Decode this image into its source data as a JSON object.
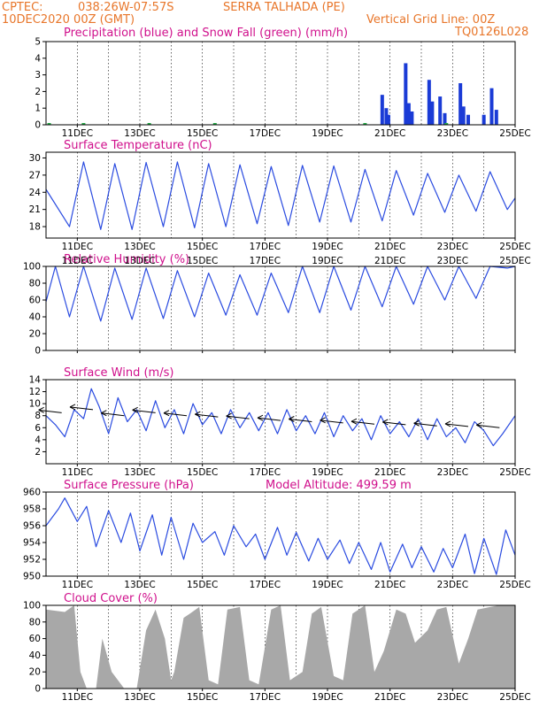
{
  "header": {
    "line1_left": "CPTEC:",
    "coords": "038:26W-07:57S",
    "station": "SERRA TALHADA (PE)",
    "date": "10DEC2020 00Z (GMT)",
    "grid_note": "Vertical Grid Line: 00Z",
    "model_code": "TQ0126L028"
  },
  "colors": {
    "header_text": "#e8762a",
    "panel_title": "#d0108c",
    "precip": "#1a3bd6",
    "snow": "#22aa44",
    "line": "#2a4be0",
    "cloud": "#a8a8a8",
    "arrows": "#000000"
  },
  "date_labels": [
    "11DEC",
    "13DEC",
    "15DEC",
    "17DEC",
    "19DEC",
    "21DEC",
    "23DEC",
    "25DEC"
  ],
  "chart_data": [
    {
      "type": "bar",
      "title": "Precipitation (blue) and Snow Fall (green) (mm/h)",
      "ylim": [
        0,
        5
      ],
      "yticks": [
        "0",
        "1",
        "2",
        "3",
        "4",
        "5"
      ],
      "x_unit": "days since 10DEC2020 00Z",
      "series": [
        {
          "name": "Precipitation",
          "points": [
            [
              10.75,
              1.8
            ],
            [
              10.88,
              1.0
            ],
            [
              10.95,
              0.6
            ],
            [
              11.5,
              3.7
            ],
            [
              11.6,
              1.3
            ],
            [
              11.7,
              0.8
            ],
            [
              12.25,
              2.7
            ],
            [
              12.35,
              1.4
            ],
            [
              12.6,
              1.7
            ],
            [
              12.75,
              0.7
            ],
            [
              13.25,
              2.5
            ],
            [
              13.35,
              1.1
            ],
            [
              13.5,
              0.6
            ],
            [
              14.0,
              0.6
            ],
            [
              14.25,
              2.2
            ],
            [
              14.4,
              0.9
            ]
          ]
        },
        {
          "name": "Snow Fall",
          "points": [
            [
              0.1,
              0.05
            ],
            [
              1.2,
              0.05
            ],
            [
              3.3,
              0.05
            ],
            [
              5.4,
              0.05
            ],
            [
              10.2,
              0.05
            ],
            [
              12.8,
              0.05
            ]
          ]
        }
      ]
    },
    {
      "type": "line",
      "title": "Surface Temperature (nC)",
      "ylim": [
        16,
        31
      ],
      "yticks": [
        "18",
        "21",
        "24",
        "27",
        "30"
      ],
      "x": [
        0,
        0.75,
        1.2,
        1.75,
        2.2,
        2.75,
        3.2,
        3.75,
        4.2,
        4.75,
        5.2,
        5.75,
        6.2,
        6.75,
        7.2,
        7.75,
        8.2,
        8.75,
        9.2,
        9.75,
        10.2,
        10.75,
        11.2,
        11.75,
        12.2,
        12.75,
        13.2,
        13.75,
        14.2,
        14.75,
        15.0
      ],
      "values": [
        24.5,
        18.0,
        29.3,
        17.5,
        29.0,
        17.5,
        29.2,
        18.0,
        29.3,
        17.8,
        29.0,
        18.0,
        28.8,
        18.5,
        28.5,
        18.2,
        28.7,
        18.8,
        28.6,
        18.8,
        28.0,
        19.0,
        27.8,
        20.0,
        27.3,
        20.5,
        27.0,
        20.7,
        27.6,
        21.0,
        23.0
      ]
    },
    {
      "type": "line",
      "title": "Relative Humidity (%)",
      "ylim": [
        0,
        100
      ],
      "yticks": [
        "0",
        "20",
        "40",
        "60",
        "80",
        "100"
      ],
      "x": [
        0,
        0.3,
        0.75,
        1.2,
        1.75,
        2.2,
        2.75,
        3.2,
        3.75,
        4.2,
        4.75,
        5.2,
        5.75,
        6.2,
        6.75,
        7.2,
        7.75,
        8.2,
        8.75,
        9.2,
        9.75,
        10.2,
        10.75,
        11.2,
        11.75,
        12.2,
        12.75,
        13.2,
        13.75,
        14.2,
        14.75,
        15.0
      ],
      "values": [
        58,
        100,
        40,
        100,
        35,
        98,
        37,
        98,
        38,
        95,
        40,
        92,
        42,
        90,
        42,
        92,
        45,
        100,
        45,
        100,
        48,
        100,
        52,
        100,
        55,
        100,
        60,
        100,
        62,
        100,
        98,
        100
      ]
    },
    {
      "type": "line",
      "title": "Surface Wind (m/s)",
      "ylim": [
        0,
        14
      ],
      "yticks": [
        "2",
        "4",
        "6",
        "8",
        "10",
        "12",
        "14"
      ],
      "x": [
        0,
        0.3,
        0.6,
        0.9,
        1.2,
        1.45,
        1.7,
        2.0,
        2.3,
        2.6,
        2.9,
        3.2,
        3.5,
        3.8,
        4.1,
        4.4,
        4.7,
        5.0,
        5.3,
        5.6,
        5.9,
        6.2,
        6.5,
        6.8,
        7.1,
        7.4,
        7.7,
        8.0,
        8.3,
        8.6,
        8.9,
        9.2,
        9.5,
        9.8,
        10.1,
        10.4,
        10.7,
        11.0,
        11.3,
        11.6,
        11.9,
        12.2,
        12.5,
        12.8,
        13.1,
        13.4,
        13.7,
        14.0,
        14.3,
        14.6,
        15.0
      ],
      "values": [
        8.0,
        6.5,
        4.5,
        9.0,
        7.5,
        12.5,
        9.5,
        5.0,
        11.0,
        7.0,
        9.0,
        5.5,
        10.5,
        6.0,
        9.0,
        5.0,
        10.0,
        6.5,
        8.5,
        5.0,
        9.0,
        6.0,
        8.5,
        5.5,
        8.5,
        5.0,
        9.0,
        5.5,
        8.0,
        5.0,
        8.5,
        4.5,
        8.0,
        5.5,
        7.5,
        4.0,
        8.0,
        5.0,
        7.0,
        4.5,
        7.5,
        4.0,
        7.5,
        4.5,
        6.0,
        3.5,
        7.0,
        5.5,
        3.0,
        5.0,
        8.0
      ],
      "arrow_speeds": [
        8.5,
        9.0,
        8.0,
        8.5,
        8.0,
        7.8,
        7.5,
        7.2,
        7.0,
        6.8,
        6.6,
        6.5,
        6.3,
        6.2,
        6.0
      ],
      "arrow_direction": "pointing left (easterly winds)"
    },
    {
      "type": "line",
      "title": "Surface Pressure (hPa)",
      "annotation": "Model Altitude: 499.59 m",
      "ylim": [
        950,
        960
      ],
      "yticks": [
        "950",
        "952",
        "954",
        "956",
        "958",
        "960"
      ],
      "x": [
        0,
        0.4,
        0.6,
        1.0,
        1.3,
        1.6,
        2.0,
        2.4,
        2.7,
        3.0,
        3.4,
        3.7,
        4.0,
        4.4,
        4.7,
        5.0,
        5.4,
        5.7,
        6.0,
        6.4,
        6.7,
        7.0,
        7.4,
        7.7,
        8.0,
        8.4,
        8.7,
        9.0,
        9.4,
        9.7,
        10.0,
        10.4,
        10.7,
        11.0,
        11.4,
        11.7,
        12.0,
        12.4,
        12.7,
        13.0,
        13.4,
        13.7,
        14.0,
        14.4,
        14.7,
        15.0
      ],
      "values": [
        956.0,
        958.0,
        959.3,
        956.5,
        958.3,
        953.5,
        957.8,
        954.0,
        957.5,
        953.0,
        957.3,
        952.5,
        957.0,
        952.0,
        956.3,
        954.0,
        955.3,
        952.5,
        956.0,
        953.5,
        955.0,
        952.0,
        955.8,
        952.5,
        955.2,
        951.8,
        954.5,
        952.0,
        954.3,
        951.5,
        954.0,
        950.8,
        954.0,
        950.5,
        953.8,
        951.0,
        953.5,
        950.5,
        953.3,
        951.0,
        955.0,
        950.3,
        954.5,
        950.2,
        955.5,
        952.5
      ]
    },
    {
      "type": "area",
      "title": "Cloud Cover (%)",
      "ylim": [
        0,
        100
      ],
      "yticks": [
        "0",
        "20",
        "40",
        "60",
        "80",
        "100"
      ],
      "x": [
        0,
        0.6,
        0.9,
        1.1,
        1.3,
        1.6,
        1.8,
        2.1,
        2.5,
        2.9,
        3.2,
        3.5,
        3.8,
        4.0,
        4.1,
        4.4,
        4.6,
        4.9,
        5.2,
        5.5,
        5.8,
        6.2,
        6.5,
        6.8,
        7.2,
        7.5,
        7.8,
        8.2,
        8.5,
        8.8,
        9.2,
        9.5,
        9.8,
        10.2,
        10.5,
        10.8,
        11.2,
        11.5,
        11.8,
        12.2,
        12.5,
        12.8,
        13.2,
        13.5,
        13.8,
        14.2,
        14.5,
        15.0
      ],
      "values": [
        95,
        92,
        100,
        20,
        0,
        0,
        60,
        20,
        0,
        0,
        70,
        95,
        60,
        10,
        20,
        85,
        90,
        98,
        10,
        5,
        95,
        98,
        10,
        5,
        95,
        100,
        10,
        20,
        90,
        98,
        15,
        10,
        90,
        100,
        20,
        45,
        95,
        90,
        55,
        70,
        95,
        98,
        30,
        60,
        95,
        98,
        100,
        100
      ]
    }
  ]
}
